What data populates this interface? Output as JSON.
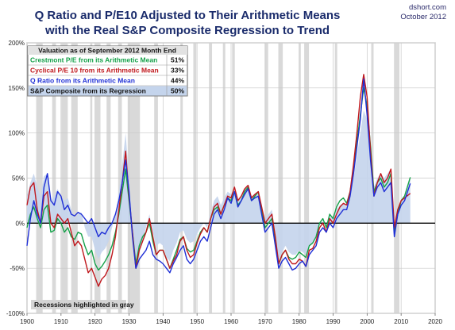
{
  "chart_data": {
    "type": "line",
    "title_line1": "Q Ratio and P/E10 Adjusted to Their Arithmetic Means",
    "title_line2": "with the Real S&P Composite Regression to Trend",
    "source": "dshort.com",
    "date": "October 2012",
    "xlim": [
      1900,
      2020
    ],
    "ylim": [
      -100,
      200
    ],
    "x_ticks": [
      1900,
      1910,
      1920,
      1930,
      1940,
      1950,
      1960,
      1970,
      1980,
      1990,
      2000,
      2010,
      2020
    ],
    "x_tick_labels": [
      "1900",
      "1910",
      "1920",
      "1930",
      "1940",
      "1950",
      "1960",
      "1970",
      "1980",
      "1990",
      "2000",
      "2010",
      "2020"
    ],
    "y_ticks": [
      -100,
      -50,
      0,
      50,
      100,
      150,
      200
    ],
    "y_tick_labels": [
      "-100%",
      "-50%",
      "0%",
      "50%",
      "100%",
      "150%",
      "200%"
    ],
    "grid": true,
    "legend": {
      "title": "Valuation as of September 2012 Month End",
      "placement": "top-left",
      "entries": [
        {
          "label": "Crestmont P/E from its Arithmetic Mean",
          "value": "51%",
          "color": "#16a14a"
        },
        {
          "label": "Cyclical P/E 10 from its Arithmetic Mean",
          "value": "33%",
          "color": "#c0171c"
        },
        {
          "label": "Q Ratio from its Arithmetic Mean",
          "value": "44%",
          "color": "#1f2fd6"
        },
        {
          "label": "S&P Composite from its Regression",
          "value": "50%",
          "color": "#111111"
        }
      ]
    },
    "annotation": "Recessions highlighted in gray",
    "recessions": [
      [
        1902.7,
        1904.6
      ],
      [
        1907.4,
        1908.5
      ],
      [
        1910.1,
        1912.0
      ],
      [
        1913.0,
        1914.9
      ],
      [
        1918.6,
        1919.2
      ],
      [
        1920.0,
        1921.6
      ],
      [
        1923.4,
        1924.6
      ],
      [
        1926.8,
        1927.9
      ],
      [
        1929.6,
        1933.2
      ],
      [
        1937.4,
        1938.5
      ],
      [
        1945.1,
        1945.8
      ],
      [
        1948.9,
        1949.8
      ],
      [
        1953.5,
        1954.4
      ],
      [
        1957.6,
        1958.3
      ],
      [
        1960.3,
        1961.1
      ],
      [
        1969.9,
        1970.9
      ],
      [
        1973.9,
        1975.2
      ],
      [
        1980.0,
        1980.5
      ],
      [
        1981.5,
        1982.9
      ],
      [
        1990.5,
        1991.2
      ],
      [
        2001.2,
        2001.9
      ],
      [
        2007.9,
        2009.5
      ]
    ],
    "series": [
      {
        "name": "S&P Composite from its Regression",
        "color": "#c4d4ec",
        "kind": "area",
        "x": [
          1900,
          1901,
          1902,
          1903,
          1904,
          1905,
          1906,
          1907,
          1908,
          1909,
          1910,
          1911,
          1912,
          1913,
          1914,
          1915,
          1916,
          1917,
          1918,
          1919,
          1920,
          1921,
          1922,
          1923,
          1924,
          1925,
          1926,
          1927,
          1928,
          1929,
          1930,
          1931,
          1932,
          1933,
          1934,
          1935,
          1936,
          1937,
          1938,
          1939,
          1940,
          1941,
          1942,
          1943,
          1944,
          1945,
          1946,
          1947,
          1948,
          1949,
          1950,
          1951,
          1952,
          1953,
          1954,
          1955,
          1956,
          1957,
          1958,
          1959,
          1960,
          1961,
          1962,
          1963,
          1964,
          1965,
          1966,
          1967,
          1968,
          1969,
          1970,
          1971,
          1972,
          1973,
          1974,
          1975,
          1976,
          1977,
          1978,
          1979,
          1980,
          1981,
          1982,
          1983,
          1984,
          1985,
          1986,
          1987,
          1988,
          1989,
          1990,
          1991,
          1992,
          1993,
          1994,
          1995,
          1996,
          1997,
          1998,
          1999,
          2000,
          2001,
          2002,
          2003,
          2004,
          2005,
          2006,
          2007,
          2008,
          2009,
          2010,
          2011,
          2012.7
        ],
        "values": [
          30,
          45,
          55,
          40,
          30,
          52,
          55,
          25,
          30,
          38,
          30,
          25,
          28,
          15,
          5,
          10,
          12,
          -5,
          -15,
          -15,
          -30,
          -40,
          -32,
          -28,
          -20,
          -5,
          10,
          35,
          65,
          100,
          50,
          0,
          -45,
          -30,
          -20,
          -5,
          10,
          -10,
          -25,
          -22,
          -25,
          -38,
          -42,
          -30,
          -22,
          -10,
          -8,
          -18,
          -22,
          -20,
          -12,
          -5,
          0,
          -5,
          12,
          25,
          30,
          20,
          28,
          35,
          32,
          40,
          25,
          30,
          38,
          42,
          30,
          32,
          35,
          20,
          5,
          10,
          15,
          -10,
          -42,
          -32,
          -25,
          -32,
          -35,
          -35,
          -30,
          -32,
          -35,
          -25,
          -22,
          -15,
          0,
          2,
          -5,
          8,
          5,
          15,
          20,
          22,
          18,
          30,
          50,
          75,
          100,
          125,
          115,
          80,
          40,
          50,
          55,
          50,
          55,
          60,
          0,
          15,
          25,
          30,
          50
        ]
      },
      {
        "name": "Crestmont P/E from its Arithmetic Mean",
        "color": "#16a14a",
        "kind": "line",
        "x": [
          1900,
          1901,
          1902,
          1903,
          1904,
          1905,
          1906,
          1907,
          1908,
          1909,
          1910,
          1911,
          1912,
          1913,
          1914,
          1915,
          1916,
          1917,
          1918,
          1919,
          1920,
          1921,
          1922,
          1923,
          1924,
          1925,
          1926,
          1927,
          1928,
          1929,
          1930,
          1931,
          1932,
          1933,
          1934,
          1935,
          1936,
          1937,
          1938,
          1939,
          1940,
          1941,
          1942,
          1943,
          1944,
          1945,
          1946,
          1947,
          1948,
          1949,
          1950,
          1951,
          1952,
          1953,
          1954,
          1955,
          1956,
          1957,
          1958,
          1959,
          1960,
          1961,
          1962,
          1963,
          1964,
          1965,
          1966,
          1967,
          1968,
          1969,
          1970,
          1971,
          1972,
          1973,
          1974,
          1975,
          1976,
          1977,
          1978,
          1979,
          1980,
          1981,
          1982,
          1983,
          1984,
          1985,
          1986,
          1987,
          1988,
          1989,
          1990,
          1991,
          1992,
          1993,
          1994,
          1995,
          1996,
          1997,
          1998,
          1999,
          2000,
          2001,
          2002,
          2003,
          2004,
          2005,
          2006,
          2007,
          2008,
          2009,
          2010,
          2011,
          2012.7
        ],
        "values": [
          -5,
          10,
          18,
          5,
          -5,
          15,
          20,
          -10,
          -8,
          5,
          0,
          -10,
          -5,
          -15,
          -18,
          -10,
          -12,
          -25,
          -35,
          -30,
          -45,
          -52,
          -48,
          -42,
          -35,
          -25,
          -10,
          10,
          35,
          60,
          25,
          -10,
          -45,
          -25,
          -15,
          -10,
          0,
          -20,
          -35,
          -30,
          -30,
          -40,
          -50,
          -40,
          -30,
          -18,
          -15,
          -28,
          -32,
          -30,
          -20,
          -10,
          -5,
          -10,
          5,
          15,
          18,
          10,
          20,
          28,
          25,
          35,
          20,
          25,
          35,
          40,
          25,
          30,
          35,
          15,
          -5,
          0,
          5,
          -20,
          -45,
          -35,
          -30,
          -38,
          -40,
          -38,
          -32,
          -35,
          -38,
          -25,
          -22,
          -15,
          0,
          5,
          -5,
          10,
          5,
          18,
          25,
          28,
          22,
          35,
          60,
          90,
          120,
          150,
          130,
          85,
          35,
          45,
          50,
          40,
          45,
          55,
          -10,
          10,
          25,
          30,
          51
        ]
      },
      {
        "name": "Cyclical P/E 10 from its Arithmetic Mean",
        "color": "#c0171c",
        "kind": "line",
        "x": [
          1900,
          1901,
          1902,
          1903,
          1904,
          1905,
          1906,
          1907,
          1908,
          1909,
          1910,
          1911,
          1912,
          1913,
          1914,
          1915,
          1916,
          1917,
          1918,
          1919,
          1920,
          1921,
          1922,
          1923,
          1924,
          1925,
          1926,
          1927,
          1928,
          1929,
          1930,
          1931,
          1932,
          1933,
          1934,
          1935,
          1936,
          1937,
          1938,
          1939,
          1940,
          1941,
          1942,
          1943,
          1944,
          1945,
          1946,
          1947,
          1948,
          1949,
          1950,
          1951,
          1952,
          1953,
          1954,
          1955,
          1956,
          1957,
          1958,
          1959,
          1960,
          1961,
          1962,
          1963,
          1964,
          1965,
          1966,
          1967,
          1968,
          1969,
          1970,
          1971,
          1972,
          1973,
          1974,
          1975,
          1976,
          1977,
          1978,
          1979,
          1980,
          1981,
          1982,
          1983,
          1984,
          1985,
          1986,
          1987,
          1988,
          1989,
          1990,
          1991,
          1992,
          1993,
          1994,
          1995,
          1996,
          1997,
          1998,
          1999,
          2000,
          2001,
          2002,
          2003,
          2004,
          2005,
          2006,
          2007,
          2008,
          2009,
          2010,
          2011,
          2012.7
        ],
        "values": [
          20,
          40,
          45,
          15,
          0,
          30,
          35,
          0,
          -5,
          10,
          5,
          0,
          5,
          -10,
          -25,
          -20,
          -25,
          -40,
          -55,
          -50,
          -60,
          -70,
          -62,
          -58,
          -50,
          -35,
          -15,
          15,
          45,
          80,
          30,
          -10,
          -50,
          -30,
          -20,
          -10,
          5,
          -15,
          -35,
          -30,
          -30,
          -40,
          -50,
          -42,
          -35,
          -20,
          -15,
          -30,
          -38,
          -35,
          -22,
          -12,
          -5,
          -10,
          5,
          18,
          22,
          10,
          20,
          30,
          28,
          40,
          25,
          30,
          38,
          42,
          28,
          32,
          35,
          18,
          0,
          5,
          10,
          -15,
          -45,
          -35,
          -30,
          -40,
          -45,
          -45,
          -40,
          -42,
          -48,
          -30,
          -28,
          -20,
          -5,
          0,
          -10,
          5,
          0,
          10,
          18,
          22,
          20,
          35,
          65,
          100,
          140,
          165,
          140,
          80,
          30,
          45,
          55,
          45,
          50,
          60,
          -5,
          15,
          25,
          28,
          33
        ]
      },
      {
        "name": "Q Ratio from its Arithmetic Mean",
        "color": "#1f2fd6",
        "kind": "line",
        "x": [
          1900,
          1901,
          1902,
          1903,
          1904,
          1905,
          1906,
          1907,
          1908,
          1909,
          1910,
          1911,
          1912,
          1913,
          1914,
          1915,
          1916,
          1917,
          1918,
          1919,
          1920,
          1921,
          1922,
          1923,
          1924,
          1925,
          1926,
          1927,
          1928,
          1929,
          1930,
          1931,
          1932,
          1933,
          1934,
          1935,
          1936,
          1937,
          1938,
          1939,
          1940,
          1941,
          1942,
          1943,
          1944,
          1945,
          1946,
          1947,
          1948,
          1949,
          1950,
          1951,
          1952,
          1953,
          1954,
          1955,
          1956,
          1957,
          1958,
          1959,
          1960,
          1961,
          1962,
          1963,
          1964,
          1965,
          1966,
          1967,
          1968,
          1969,
          1970,
          1971,
          1972,
          1973,
          1974,
          1975,
          1976,
          1977,
          1978,
          1979,
          1980,
          1981,
          1982,
          1983,
          1984,
          1985,
          1986,
          1987,
          1988,
          1989,
          1990,
          1991,
          1992,
          1993,
          1994,
          1995,
          1996,
          1997,
          1998,
          1999,
          2000,
          2001,
          2002,
          2003,
          2004,
          2005,
          2006,
          2007,
          2008,
          2009,
          2010,
          2011,
          2012.7
        ],
        "values": [
          -25,
          5,
          25,
          10,
          0,
          40,
          55,
          25,
          20,
          35,
          30,
          15,
          20,
          10,
          8,
          12,
          10,
          5,
          0,
          5,
          -5,
          -15,
          -10,
          -12,
          -5,
          0,
          10,
          25,
          45,
          70,
          35,
          -15,
          -50,
          -40,
          -35,
          -30,
          -20,
          -35,
          -40,
          -42,
          -45,
          -50,
          -55,
          -45,
          -38,
          -30,
          -25,
          -40,
          -45,
          -40,
          -30,
          -20,
          -15,
          -20,
          -5,
          10,
          15,
          5,
          15,
          28,
          22,
          35,
          18,
          25,
          32,
          38,
          25,
          28,
          30,
          10,
          -10,
          -5,
          0,
          -25,
          -50,
          -42,
          -38,
          -45,
          -52,
          -50,
          -45,
          -42,
          -48,
          -35,
          -30,
          -25,
          -10,
          -5,
          -10,
          0,
          -5,
          5,
          10,
          15,
          15,
          30,
          55,
          85,
          115,
          160,
          120,
          70,
          30,
          40,
          45,
          35,
          40,
          45,
          -15,
          10,
          20,
          25,
          44
        ]
      }
    ]
  }
}
